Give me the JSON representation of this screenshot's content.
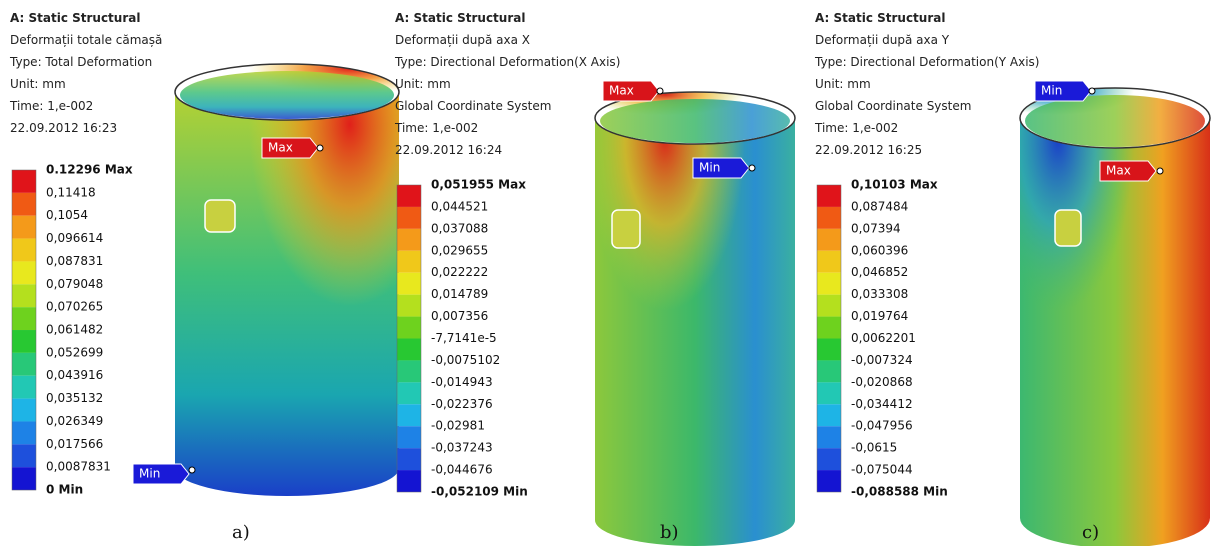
{
  "panels": [
    {
      "header": [
        "A: Static Structural",
        "Deformații totale cămașă",
        "Type: Total Deformation",
        "Unit: mm",
        "Time: 1,e-002",
        "22.09.2012 16:23"
      ],
      "legend": [
        "0.12296 Max",
        "0,11418",
        "0,1054",
        "0,096614",
        "0,087831",
        "0,079048",
        "0,070265",
        "0,061482",
        "0,052699",
        "0,043916",
        "0,035132",
        "0,026349",
        "0,017566",
        "0,0087831",
        "0 Min"
      ],
      "tags": [
        "Max",
        "Min"
      ],
      "caption": "a)"
    },
    {
      "header": [
        "A: Static Structural",
        "Deformații după axa X",
        "Type: Directional Deformation(X Axis)",
        "Unit: mm",
        "Global Coordinate System",
        "Time: 1,e-002",
        "22.09.2012 16:24"
      ],
      "legend": [
        "0,051955 Max",
        "0,044521",
        "0,037088",
        "0,029655",
        "0,022222",
        "0,014789",
        "0,007356",
        "-7,7141e-5",
        "-0,0075102",
        "-0,014943",
        "-0,022376",
        "-0,02981",
        "-0,037243",
        "-0,044676",
        "-0,052109 Min"
      ],
      "tags": [
        "Max",
        "Min"
      ],
      "caption": "b)"
    },
    {
      "header": [
        "A: Static Structural",
        "Deformații după axa Y",
        "Type: Directional Deformation(Y Axis)",
        "Unit: mm",
        "Global Coordinate System",
        "Time: 1,e-002",
        "22.09.2012 16:25"
      ],
      "legend": [
        "0,10103 Max",
        "0,087484",
        "0,07394",
        "0,060396",
        "0,046852",
        "0,033308",
        "0,019764",
        "0,0062201",
        "-0,007324",
        "-0,020868",
        "-0,034412",
        "-0,047956",
        "-0,0615",
        "-0,075044",
        "-0,088588 Min"
      ],
      "tags": [
        "Min",
        "Max"
      ],
      "caption": "c)"
    }
  ]
}
